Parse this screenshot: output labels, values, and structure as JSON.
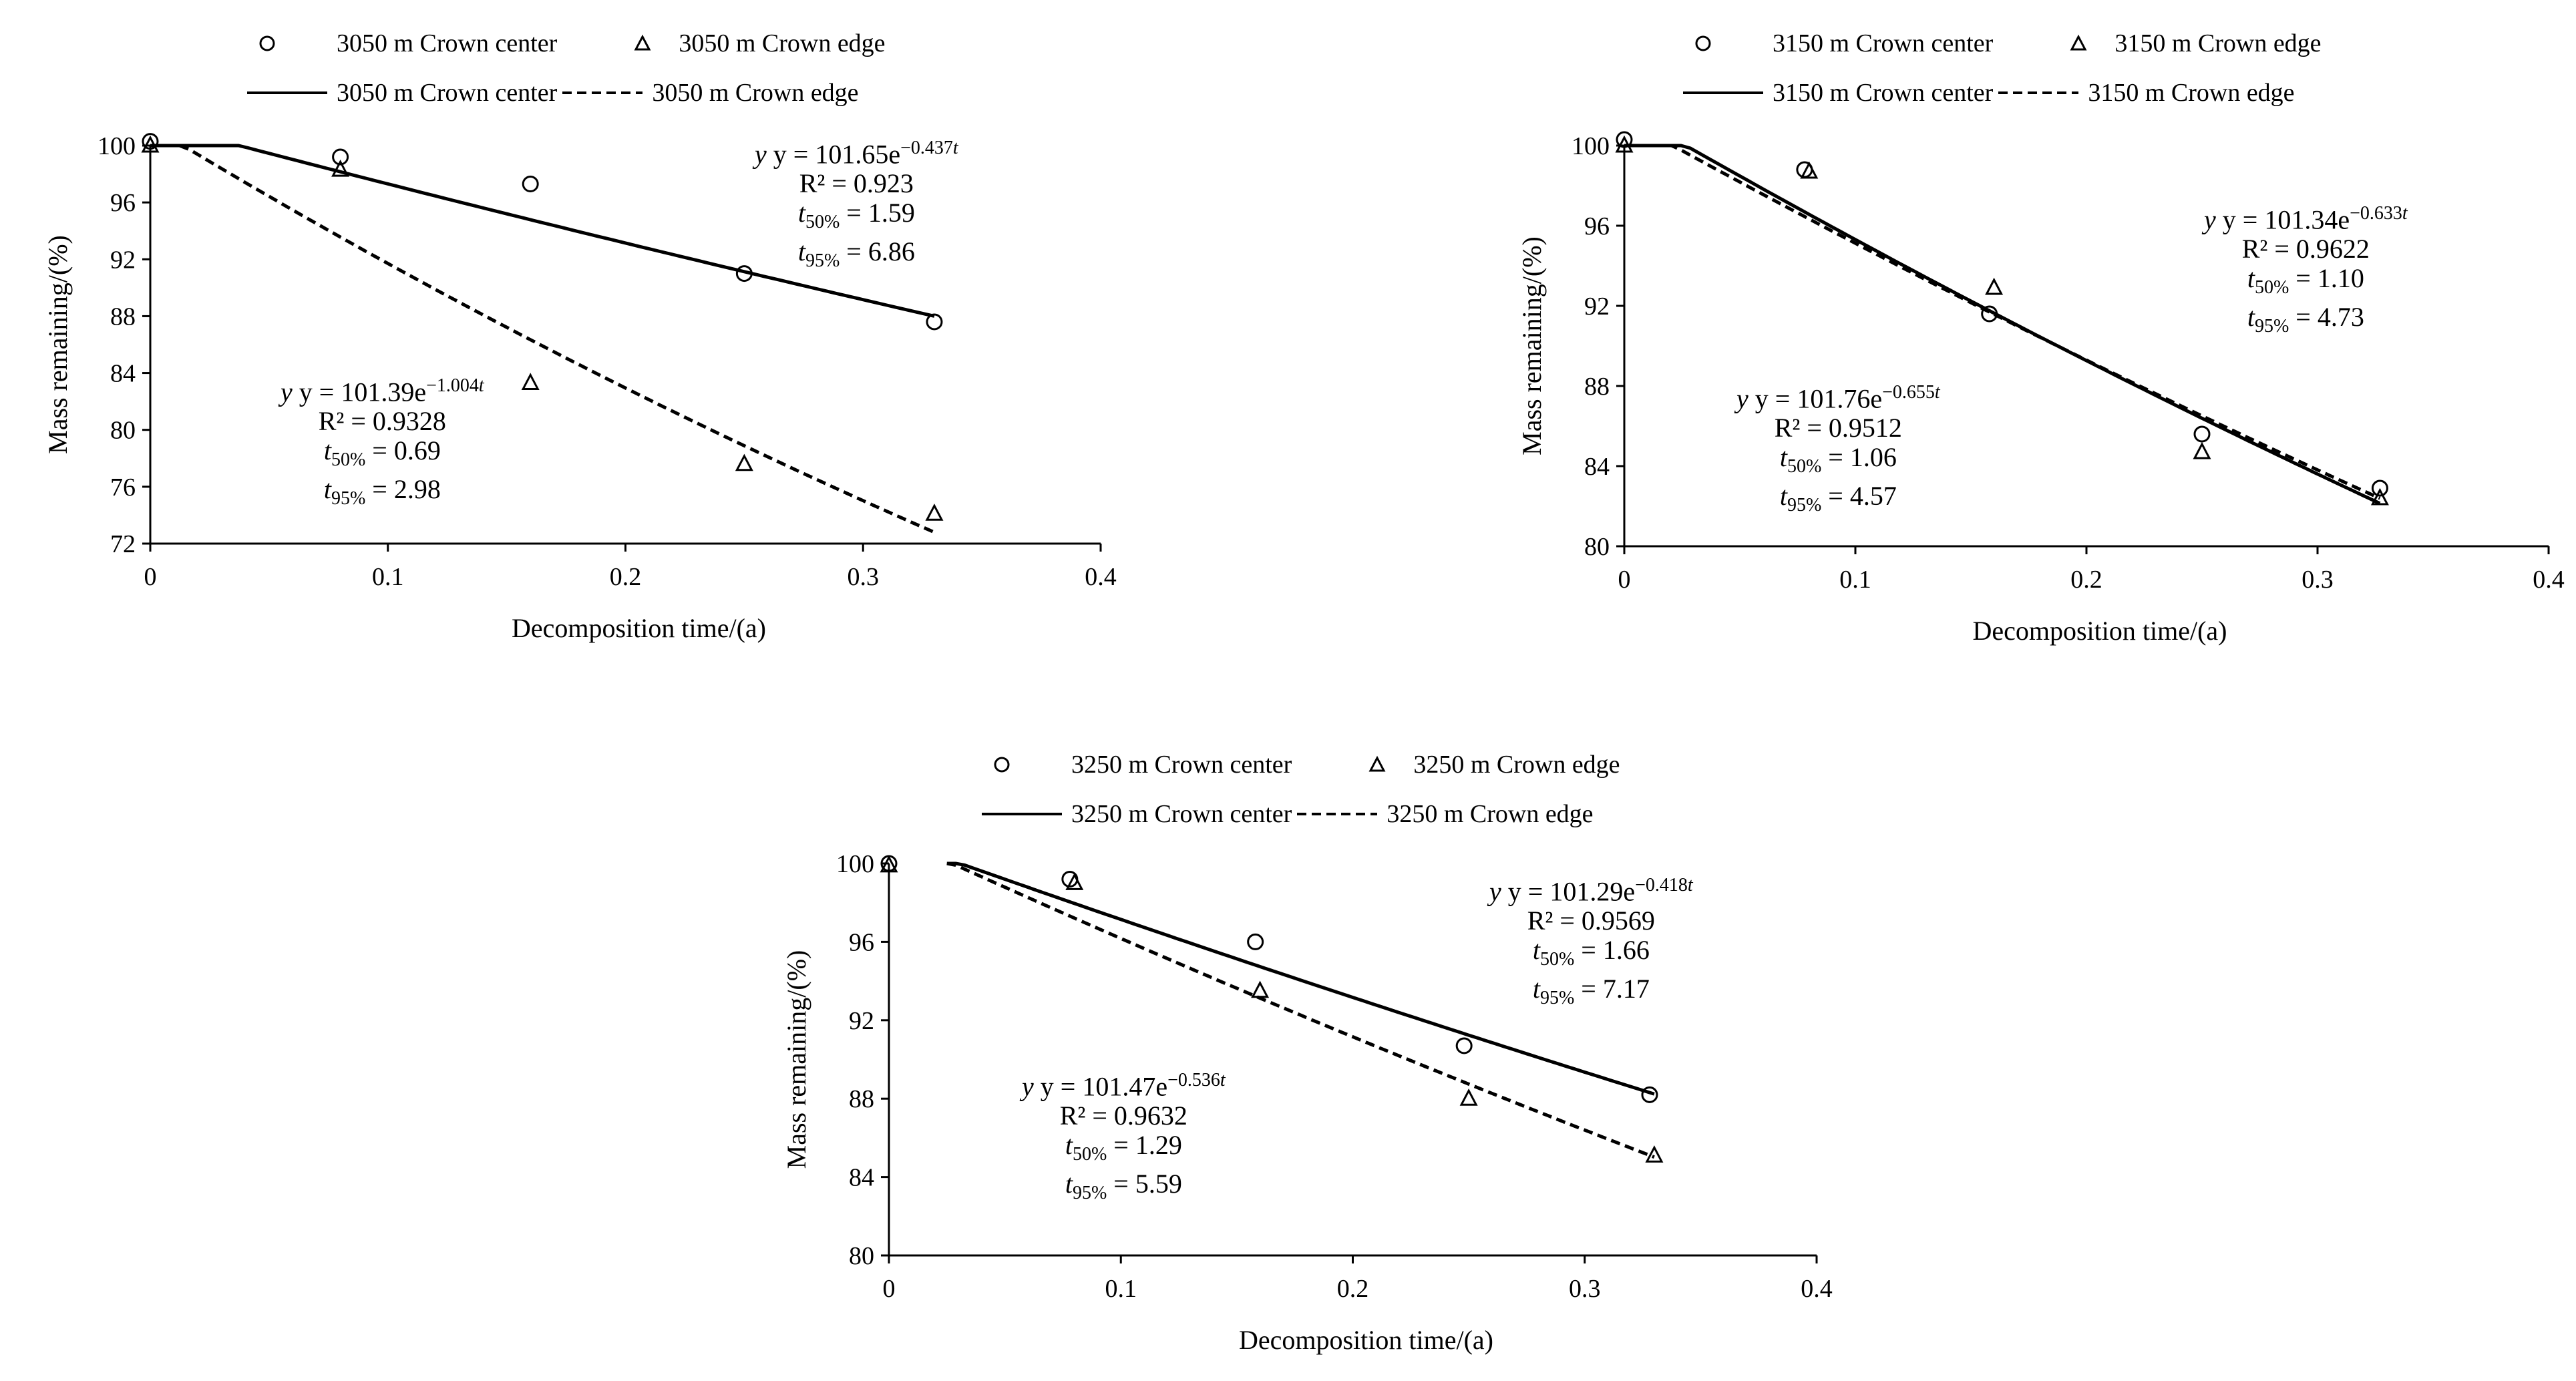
{
  "chart_data": [
    {
      "type": "scatter",
      "xlabel": "Decomposition time/(a)",
      "ylabel": "Mass remaining/(%)",
      "xlim": [
        0,
        0.4
      ],
      "ylim": [
        72,
        100
      ],
      "xticks": [
        0,
        0.1,
        0.2,
        0.3,
        0.4
      ],
      "xtick_labels": [
        "0",
        "0.1",
        "0.2",
        "0.3",
        "0.4"
      ],
      "yticks": [
        72,
        76,
        80,
        84,
        88,
        92,
        96,
        100
      ],
      "ytick_labels": [
        "72",
        "76",
        "80",
        "84",
        "88",
        "92",
        "96",
        "100"
      ],
      "legend_position": "top",
      "series": [
        {
          "name": "3050 m Crown center",
          "marker": "circle",
          "x": [
            0,
            0.08,
            0.16,
            0.25,
            0.33
          ],
          "y": [
            100.3,
            99.2,
            97.3,
            91.0,
            87.6
          ]
        },
        {
          "name": "3050 m Crown edge",
          "marker": "triangle",
          "x": [
            0,
            0.08,
            0.16,
            0.25,
            0.33
          ],
          "y": [
            100.0,
            98.3,
            83.3,
            77.6,
            74.1
          ]
        }
      ],
      "fits": [
        {
          "name": "3050 m Crown center",
          "style": "solid",
          "a": 101.65,
          "k": 0.437,
          "x_range": [
            0,
            0.33
          ]
        },
        {
          "name": "3050 m Crown edge",
          "style": "dashed",
          "a": 101.39,
          "k": 1.004,
          "x_range": [
            0,
            0.33
          ]
        }
      ],
      "annotations": [
        {
          "label": "center",
          "eq_prefix": "y = 101.65e",
          "eq_exp": "−0.437",
          "r2": "R² = 0.923",
          "t50": "= 1.59",
          "t95": "= 6.86"
        },
        {
          "label": "edge",
          "eq_prefix": "y = 101.39e",
          "eq_exp": "−1.004",
          "r2": "R² = 0.9328",
          "t50": "= 0.69",
          "t95": "= 2.98"
        }
      ]
    },
    {
      "type": "scatter",
      "xlabel": "Decomposition time/(a)",
      "ylabel": "Mass remaining/(%)",
      "xlim": [
        0,
        0.4
      ],
      "ylim": [
        80,
        100
      ],
      "xticks": [
        0,
        0.1,
        0.2,
        0.3,
        0.4
      ],
      "xtick_labels": [
        "0",
        "0.1",
        "0.2",
        "0.3",
        "0.4"
      ],
      "yticks": [
        80,
        84,
        88,
        92,
        96,
        100
      ],
      "ytick_labels": [
        "80",
        "84",
        "88",
        "92",
        "96",
        "100"
      ],
      "legend_position": "top",
      "series": [
        {
          "name": "3150 m Crown center",
          "marker": "circle",
          "x": [
            0,
            0.078,
            0.158,
            0.25,
            0.327
          ],
          "y": [
            100.3,
            98.8,
            91.6,
            85.6,
            82.9
          ]
        },
        {
          "name": "3150 m Crown edge",
          "marker": "triangle",
          "x": [
            0,
            0.08,
            0.16,
            0.25,
            0.327
          ],
          "y": [
            100.0,
            98.7,
            92.9,
            84.7,
            82.4
          ]
        }
      ],
      "fits": [
        {
          "name": "3150 m Crown center",
          "style": "solid",
          "a": 101.76,
          "k": 0.655,
          "x_range": [
            0,
            0.327
          ]
        },
        {
          "name": "3150 m Crown edge",
          "style": "dashed",
          "a": 101.34,
          "k": 0.633,
          "x_range": [
            0,
            0.327
          ]
        }
      ],
      "annotations": [
        {
          "label": "edge",
          "eq_prefix": "y = 101.34e",
          "eq_exp": "−0.633",
          "r2": "R² = 0.9622",
          "t50": "= 1.10",
          "t95": "= 4.73"
        },
        {
          "label": "center",
          "eq_prefix": "y = 101.76e",
          "eq_exp": "−0.655",
          "r2": "R² = 0.9512",
          "t50": "= 1.06",
          "t95": "= 4.57"
        }
      ]
    },
    {
      "type": "scatter",
      "xlabel": "Decomposition time/(a)",
      "ylabel": "Mass remaining/(%)",
      "xlim": [
        0,
        0.4
      ],
      "ylim": [
        80,
        100
      ],
      "xticks": [
        0,
        0.1,
        0.2,
        0.3,
        0.4
      ],
      "xtick_labels": [
        "0",
        "0.1",
        "0.2",
        "0.3",
        "0.4"
      ],
      "yticks": [
        80,
        84,
        88,
        92,
        96,
        100
      ],
      "ytick_labels": [
        "80",
        "84",
        "88",
        "92",
        "96",
        "100"
      ],
      "legend_position": "top",
      "series": [
        {
          "name": "3250 m Crown center",
          "marker": "circle",
          "x": [
            0,
            0.078,
            0.158,
            0.248,
            0.328
          ],
          "y": [
            100.0,
            99.2,
            96.0,
            90.7,
            88.2
          ]
        },
        {
          "name": "3250 m Crown edge",
          "marker": "triangle",
          "x": [
            0,
            0.08,
            0.16,
            0.25,
            0.33
          ],
          "y": [
            99.9,
            99.0,
            93.5,
            88.0,
            85.1
          ]
        }
      ],
      "fits": [
        {
          "name": "3250 m Crown center",
          "style": "solid",
          "a": 101.29,
          "k": 0.418,
          "x_range": [
            0.025,
            0.33
          ]
        },
        {
          "name": "3250 m Crown edge",
          "style": "dashed",
          "a": 101.47,
          "k": 0.536,
          "x_range": [
            0.025,
            0.33
          ]
        }
      ],
      "annotations": [
        {
          "label": "center",
          "eq_prefix": "y = 101.29e",
          "eq_exp": "−0.418",
          "r2": "R² = 0.9569",
          "t50": "= 1.66",
          "t95": "= 7.17"
        },
        {
          "label": "edge",
          "eq_prefix": "y = 101.47e",
          "eq_exp": "−0.536",
          "r2": "R² = 0.9632",
          "t50": "= 1.29",
          "t95": "= 5.59"
        }
      ]
    }
  ]
}
